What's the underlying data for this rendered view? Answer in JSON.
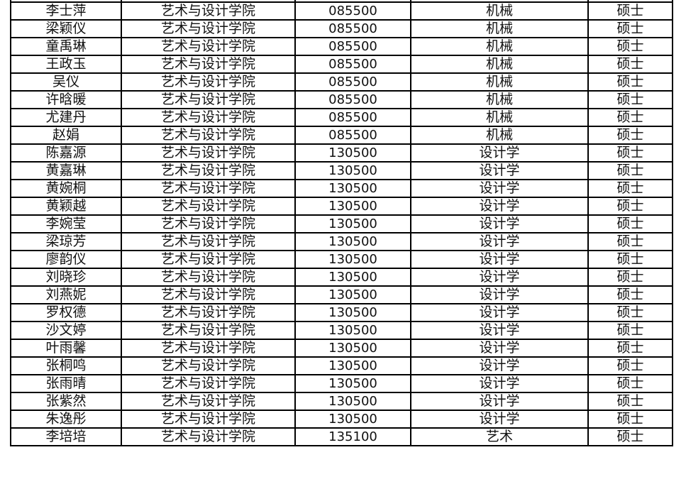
{
  "table": {
    "rows": [
      {
        "name": "李士萍",
        "college": "艺术与设计学院",
        "code": "085500",
        "major": "机械",
        "degree": "硕士"
      },
      {
        "name": "梁颖仪",
        "college": "艺术与设计学院",
        "code": "085500",
        "major": "机械",
        "degree": "硕士"
      },
      {
        "name": "童禹琳",
        "college": "艺术与设计学院",
        "code": "085500",
        "major": "机械",
        "degree": "硕士"
      },
      {
        "name": "王政玉",
        "college": "艺术与设计学院",
        "code": "085500",
        "major": "机械",
        "degree": "硕士"
      },
      {
        "name": "吴仪",
        "college": "艺术与设计学院",
        "code": "085500",
        "major": "机械",
        "degree": "硕士"
      },
      {
        "name": "许晗暖",
        "college": "艺术与设计学院",
        "code": "085500",
        "major": "机械",
        "degree": "硕士"
      },
      {
        "name": "尤建丹",
        "college": "艺术与设计学院",
        "code": "085500",
        "major": "机械",
        "degree": "硕士"
      },
      {
        "name": "赵娟",
        "college": "艺术与设计学院",
        "code": "085500",
        "major": "机械",
        "degree": "硕士"
      },
      {
        "name": "陈嘉源",
        "college": "艺术与设计学院",
        "code": "130500",
        "major": "设计学",
        "degree": "硕士"
      },
      {
        "name": "黄嘉琳",
        "college": "艺术与设计学院",
        "code": "130500",
        "major": "设计学",
        "degree": "硕士"
      },
      {
        "name": "黄婉桐",
        "college": "艺术与设计学院",
        "code": "130500",
        "major": "设计学",
        "degree": "硕士"
      },
      {
        "name": "黄颖越",
        "college": "艺术与设计学院",
        "code": "130500",
        "major": "设计学",
        "degree": "硕士"
      },
      {
        "name": "李婉莹",
        "college": "艺术与设计学院",
        "code": "130500",
        "major": "设计学",
        "degree": "硕士"
      },
      {
        "name": "梁琼芳",
        "college": "艺术与设计学院",
        "code": "130500",
        "major": "设计学",
        "degree": "硕士"
      },
      {
        "name": "廖韵仪",
        "college": "艺术与设计学院",
        "code": "130500",
        "major": "设计学",
        "degree": "硕士"
      },
      {
        "name": "刘晓珍",
        "college": "艺术与设计学院",
        "code": "130500",
        "major": "设计学",
        "degree": "硕士"
      },
      {
        "name": "刘燕妮",
        "college": "艺术与设计学院",
        "code": "130500",
        "major": "设计学",
        "degree": "硕士"
      },
      {
        "name": "罗权德",
        "college": "艺术与设计学院",
        "code": "130500",
        "major": "设计学",
        "degree": "硕士"
      },
      {
        "name": "沙文婷",
        "college": "艺术与设计学院",
        "code": "130500",
        "major": "设计学",
        "degree": "硕士"
      },
      {
        "name": "叶雨馨",
        "college": "艺术与设计学院",
        "code": "130500",
        "major": "设计学",
        "degree": "硕士"
      },
      {
        "name": "张桐鸣",
        "college": "艺术与设计学院",
        "code": "130500",
        "major": "设计学",
        "degree": "硕士"
      },
      {
        "name": "张雨晴",
        "college": "艺术与设计学院",
        "code": "130500",
        "major": "设计学",
        "degree": "硕士"
      },
      {
        "name": "张紫然",
        "college": "艺术与设计学院",
        "code": "130500",
        "major": "设计学",
        "degree": "硕士"
      },
      {
        "name": "朱逸彤",
        "college": "艺术与设计学院",
        "code": "130500",
        "major": "设计学",
        "degree": "硕士"
      },
      {
        "name": "李培培",
        "college": "艺术与设计学院",
        "code": "135100",
        "major": "艺术",
        "degree": "硕士"
      }
    ]
  }
}
